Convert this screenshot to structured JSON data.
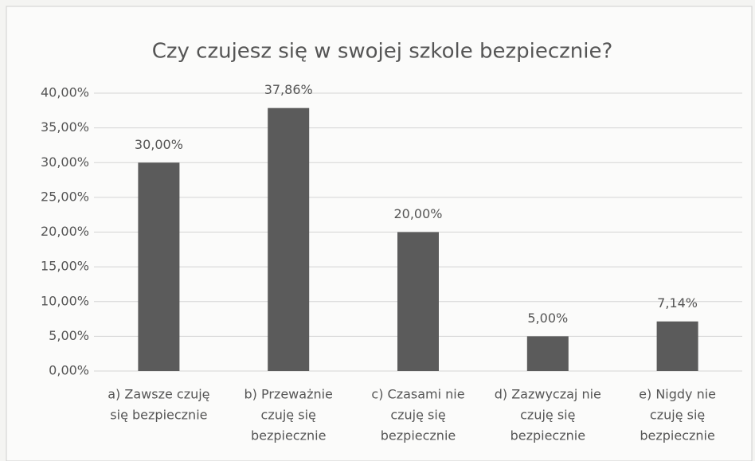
{
  "chart_data": {
    "type": "bar",
    "title": "Czy czujesz się w swojej szkole bezpiecznie?",
    "categories": [
      [
        "a) Zawsze czuję",
        "się bezpiecznie"
      ],
      [
        "b) Przeważnie",
        "czuję się",
        "bezpiecznie"
      ],
      [
        "c) Czasami nie",
        "czuję się",
        "bezpiecznie"
      ],
      [
        "d) Zazwyczaj nie",
        "czuję się",
        "bezpiecznie"
      ],
      [
        "e) Nigdy  nie",
        "czuję się",
        "bezpiecznie"
      ]
    ],
    "values": [
      30,
      37.86,
      20,
      5,
      7.14
    ],
    "value_labels": [
      "30,00%",
      "37,86%",
      "20,00%",
      "5,00%",
      "7,14%"
    ],
    "color": "#5b5b5b",
    "ylim": [
      0,
      40
    ],
    "yticks": [
      {
        "value": 0,
        "label": "0,00%"
      },
      {
        "value": 5,
        "label": "5,00%"
      },
      {
        "value": 10,
        "label": "10,00%"
      },
      {
        "value": 15,
        "label": "15,00%"
      },
      {
        "value": 20,
        "label": "20,00%"
      },
      {
        "value": 25,
        "label": "25,00%"
      },
      {
        "value": 30,
        "label": "30,00%"
      },
      {
        "value": 35,
        "label": "35,00%"
      },
      {
        "value": 40,
        "label": "40,00%"
      }
    ],
    "grid": true
  }
}
